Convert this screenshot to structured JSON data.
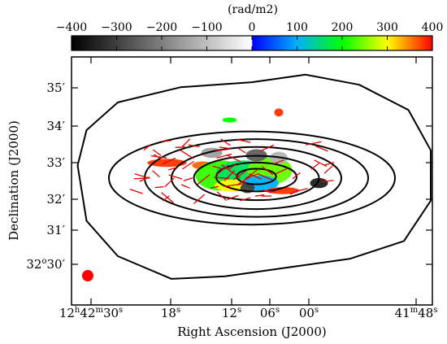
{
  "chart_data": {
    "type": "heatmap",
    "description_of_content": "",
    "colorbar": {
      "unit": "(rad/m2)",
      "range": [
        -400,
        400
      ],
      "ticks": [
        -400,
        -300,
        -200,
        -100,
        0,
        100,
        200,
        300,
        400
      ],
      "tick_labels": [
        "−400",
        "−300",
        "−200",
        "−100",
        "0",
        "100",
        "200",
        "300",
        "400"
      ],
      "stops": [
        {
          "v": -400,
          "c": "#000000"
        },
        {
          "v": 0,
          "c": "#ffffff"
        },
        {
          "v": 1,
          "c": "#0000ff"
        },
        {
          "v": 100,
          "c": "#00b0ff"
        },
        {
          "v": 200,
          "c": "#00ff00"
        },
        {
          "v": 300,
          "c": "#ffff00"
        },
        {
          "v": 350,
          "c": "#ff8000"
        },
        {
          "v": 400,
          "c": "#ff0000"
        }
      ]
    },
    "x_axis": {
      "label": "Right Ascension (J2000)",
      "ticks": [
        {
          "h": "12",
          "m": "42",
          "s": "30"
        },
        {
          "s": "18"
        },
        {
          "s": "12"
        },
        {
          "s": "06"
        },
        {
          "s": "00"
        },
        {
          "m": "41",
          "s": "48"
        }
      ]
    },
    "y_axis": {
      "label": "Declination (J2000)",
      "ticks": [
        {
          "arcmin": "35",
          "text": "35′"
        },
        {
          "arcmin": "34",
          "text": "34′"
        },
        {
          "arcmin": "33",
          "text": "33′"
        },
        {
          "arcmin": "32",
          "text": "32′"
        },
        {
          "arcmin": "31",
          "text": "31′"
        },
        {
          "deg": "32",
          "arcmin": "30",
          "text": "30′"
        }
      ]
    },
    "beam": {
      "color": "#ff0000"
    },
    "rm_regions": [
      {
        "v": 380,
        "cx": -0.95,
        "cy": 0.35,
        "rx": 0.22,
        "ry": 0.08
      },
      {
        "v": 360,
        "cx": -0.55,
        "cy": 0.3,
        "rx": 0.12,
        "ry": 0.08
      },
      {
        "v": 220,
        "cx": -0.35,
        "cy": 0.1,
        "rx": 0.28,
        "ry": 0.3
      },
      {
        "v": 160,
        "cx": -0.1,
        "cy": 0.15,
        "rx": 0.3,
        "ry": 0.25
      },
      {
        "v": 240,
        "cx": 0.2,
        "cy": 0.2,
        "rx": 0.25,
        "ry": 0.28
      },
      {
        "v": -150,
        "cx": -0.45,
        "cy": 0.55,
        "rx": 0.12,
        "ry": 0.1
      },
      {
        "v": -250,
        "cx": 0.05,
        "cy": 0.5,
        "rx": 0.12,
        "ry": 0.12
      },
      {
        "v": -120,
        "cx": 0.3,
        "cy": 0.45,
        "rx": 0.1,
        "ry": 0.12
      },
      {
        "v": 300,
        "cx": -0.2,
        "cy": -0.1,
        "rx": 0.22,
        "ry": 0.12
      },
      {
        "v": 100,
        "cx": 0.1,
        "cy": -0.05,
        "rx": 0.2,
        "ry": 0.15
      },
      {
        "v": 380,
        "cx": 0.35,
        "cy": -0.2,
        "rx": 0.18,
        "ry": 0.07
      },
      {
        "v": -300,
        "cx": -0.05,
        "cy": -0.15,
        "rx": 0.08,
        "ry": 0.1
      },
      {
        "v": -350,
        "cx": 0.75,
        "cy": -0.05,
        "rx": 0.1,
        "ry": 0.1
      },
      {
        "v": 380,
        "cx": 0.3,
        "cy": 1.35,
        "rx": 0.05,
        "ry": 0.08
      },
      {
        "v": 200,
        "cx": -0.25,
        "cy": 1.2,
        "rx": 0.08,
        "ry": 0.05
      }
    ]
  }
}
